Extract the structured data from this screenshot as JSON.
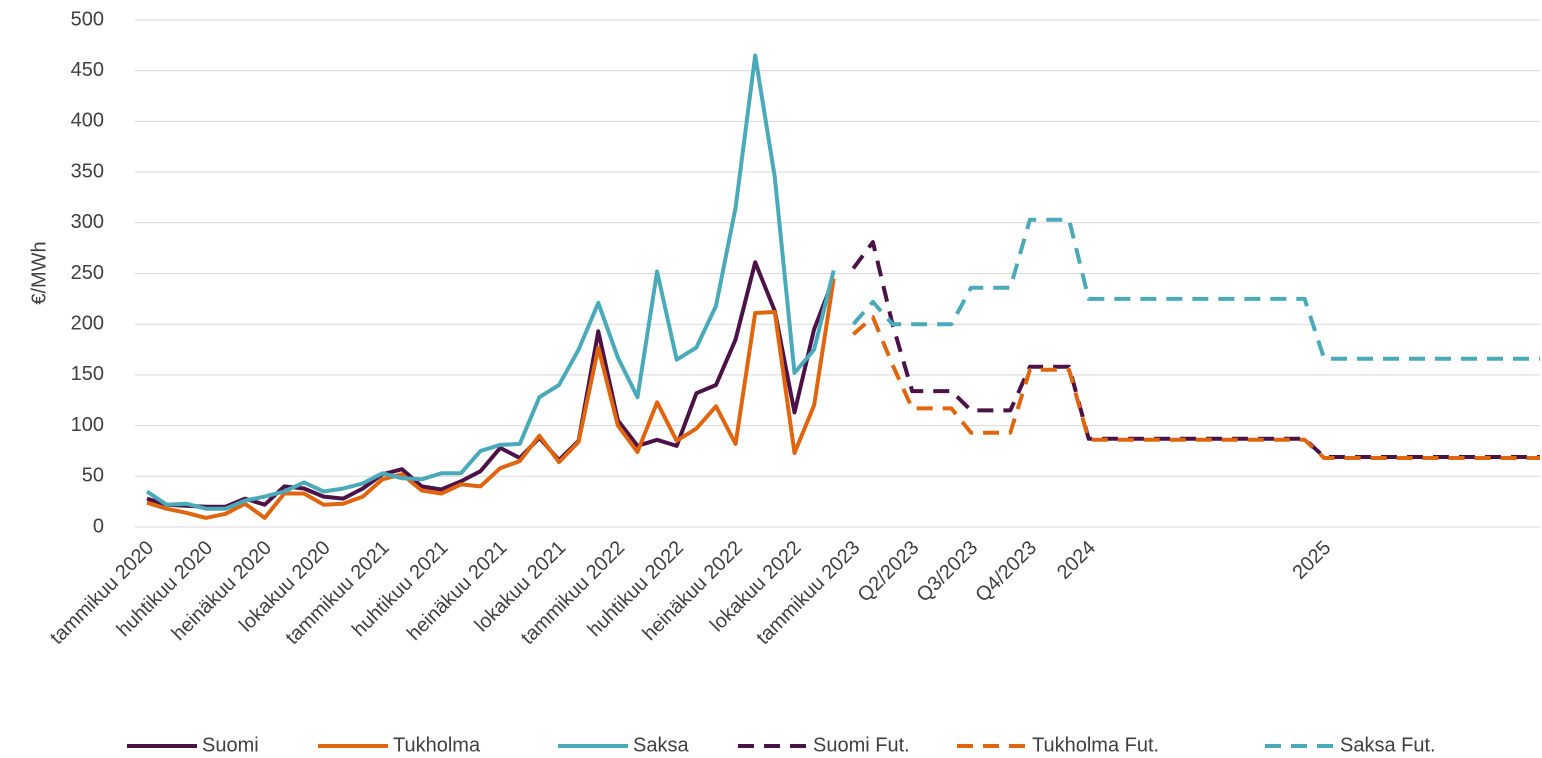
{
  "chart_data": {
    "type": "line",
    "ylabel": "€/MWh",
    "categories": [
      "tammikuu 2020",
      null,
      null,
      "huhtikuu 2020",
      null,
      null,
      "heinäkuu 2020",
      null,
      null,
      "lokakuu 2020",
      null,
      null,
      "tammikuu 2021",
      null,
      null,
      "huhtikuu 2021",
      null,
      null,
      "heinäkuu 2021",
      null,
      null,
      "lokakuu 2021",
      null,
      null,
      "tammikuu 2022",
      null,
      null,
      "huhtikuu 2022",
      null,
      null,
      "heinäkuu 2022",
      null,
      null,
      "lokakuu 2022",
      null,
      null,
      "tammikuu 2023",
      null,
      null,
      "Q2/2023",
      null,
      null,
      "Q3/2023",
      null,
      null,
      "Q4/2023",
      null,
      null,
      "2024",
      null,
      null,
      null,
      null,
      null,
      null,
      null,
      null,
      null,
      null,
      null,
      "2025",
      null,
      null,
      null,
      null,
      null,
      null,
      null,
      null,
      null,
      null,
      null
    ],
    "series": [
      {
        "name": "Suomi",
        "color": "#4b1248",
        "style": "solid",
        "values": [
          28,
          22,
          21,
          20,
          20,
          28,
          22,
          40,
          38,
          30,
          28,
          38,
          52,
          57,
          40,
          37,
          45,
          55,
          78,
          68,
          88,
          66,
          85,
          193,
          105,
          80,
          86,
          80,
          132,
          140,
          185,
          261,
          213,
          113,
          195,
          245,
          null,
          null,
          null,
          null,
          null,
          null,
          null,
          null,
          null,
          null,
          null,
          null,
          null,
          null,
          null,
          null,
          null,
          null,
          null,
          null,
          null,
          null,
          null,
          null,
          null,
          null,
          null,
          null,
          null,
          null,
          null,
          null,
          null,
          null,
          null,
          null
        ]
      },
      {
        "name": "Tukholma",
        "color": "#e0650f",
        "style": "solid",
        "values": [
          24,
          18,
          14,
          9,
          13,
          23,
          9,
          33,
          33,
          22,
          23,
          30,
          47,
          52,
          36,
          33,
          42,
          40,
          58,
          65,
          90,
          64,
          84,
          177,
          100,
          74,
          123,
          85,
          97,
          119,
          82,
          211,
          212,
          73,
          120,
          245,
          null,
          null,
          null,
          null,
          null,
          null,
          null,
          null,
          null,
          null,
          null,
          null,
          null,
          null,
          null,
          null,
          null,
          null,
          null,
          null,
          null,
          null,
          null,
          null,
          null,
          null,
          null,
          null,
          null,
          null,
          null,
          null,
          null,
          null,
          null,
          null
        ]
      },
      {
        "name": "Saksa",
        "color": "#4aaab9",
        "style": "solid",
        "values": [
          35,
          22,
          23,
          18,
          18,
          26,
          30,
          35,
          44,
          35,
          38,
          43,
          53,
          48,
          47,
          53,
          53,
          75,
          81,
          82,
          128,
          140,
          175,
          221,
          167,
          128,
          252,
          165,
          177,
          218,
          315,
          465,
          345,
          152,
          175,
          253,
          null,
          null,
          null,
          null,
          null,
          null,
          null,
          null,
          null,
          null,
          null,
          null,
          null,
          null,
          null,
          null,
          null,
          null,
          null,
          null,
          null,
          null,
          null,
          null,
          null,
          null,
          null,
          null,
          null,
          null,
          null,
          null,
          null,
          null,
          null,
          null
        ]
      },
      {
        "name": "Suomi Fut.",
        "color": "#4b1248",
        "style": "dashed",
        "values": [
          null,
          null,
          null,
          null,
          null,
          null,
          null,
          null,
          null,
          null,
          null,
          null,
          null,
          null,
          null,
          null,
          null,
          null,
          null,
          null,
          null,
          null,
          null,
          null,
          null,
          null,
          null,
          null,
          null,
          null,
          null,
          null,
          null,
          null,
          null,
          null,
          255,
          281,
          200,
          134,
          134,
          134,
          115,
          115,
          115,
          158,
          158,
          158,
          87,
          87,
          87,
          87,
          87,
          87,
          87,
          87,
          87,
          87,
          87,
          87,
          69,
          69,
          69,
          69,
          69,
          69,
          69,
          69,
          69,
          69,
          69,
          69
        ]
      },
      {
        "name": "Tukholma Fut.",
        "color": "#e0650f",
        "style": "dashed",
        "values": [
          null,
          null,
          null,
          null,
          null,
          null,
          null,
          null,
          null,
          null,
          null,
          null,
          null,
          null,
          null,
          null,
          null,
          null,
          null,
          null,
          null,
          null,
          null,
          null,
          null,
          null,
          null,
          null,
          null,
          null,
          null,
          null,
          null,
          null,
          null,
          null,
          190,
          207,
          160,
          117,
          117,
          117,
          93,
          93,
          93,
          155,
          155,
          155,
          86,
          86,
          86,
          86,
          86,
          86,
          86,
          86,
          86,
          86,
          86,
          86,
          68,
          68,
          68,
          68,
          68,
          68,
          68,
          68,
          68,
          68,
          68,
          68
        ]
      },
      {
        "name": "Saksa Fut.",
        "color": "#4aaab9",
        "style": "dashed",
        "values": [
          null,
          null,
          null,
          null,
          null,
          null,
          null,
          null,
          null,
          null,
          null,
          null,
          null,
          null,
          null,
          null,
          null,
          null,
          null,
          null,
          null,
          null,
          null,
          null,
          null,
          null,
          null,
          null,
          null,
          null,
          null,
          null,
          null,
          null,
          null,
          null,
          200,
          222,
          200,
          200,
          200,
          200,
          236,
          236,
          236,
          303,
          303,
          303,
          225,
          225,
          225,
          225,
          225,
          225,
          225,
          225,
          225,
          225,
          225,
          225,
          166,
          166,
          166,
          166,
          166,
          166,
          166,
          166,
          166,
          166,
          166,
          166
        ]
      }
    ],
    "ylim": [
      0,
      500
    ],
    "yticks": [
      0,
      50,
      100,
      150,
      200,
      250,
      300,
      350,
      400,
      450,
      500
    ],
    "grid": true,
    "legend": "bottom"
  }
}
